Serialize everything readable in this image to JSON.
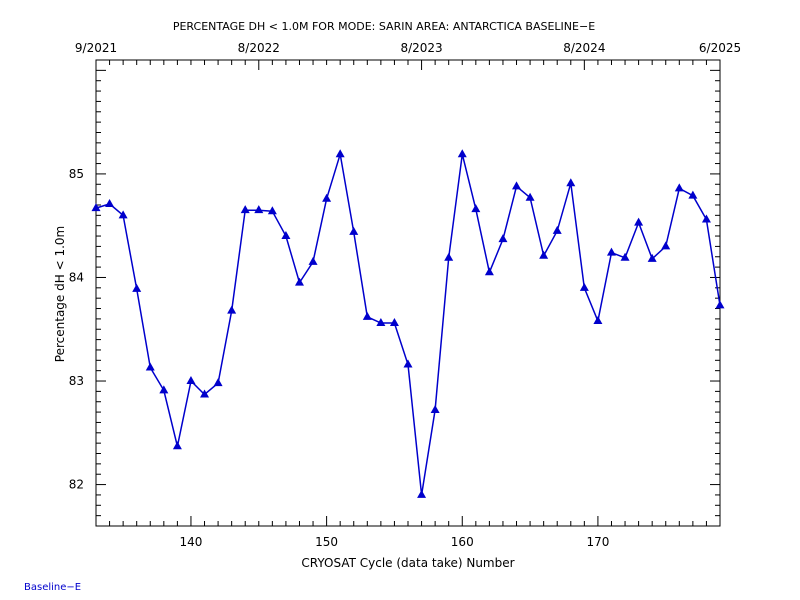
{
  "chart_data": {
    "type": "line",
    "title": "PERCENTAGE DH < 1.0M FOR MODE: SARIN AREA: ANTARCTICA BASELINE−E",
    "xlabel": "CRYOSAT Cycle (data take) Number",
    "ylabel": "Percentage dH < 1.0m",
    "xlim": [
      133,
      179
    ],
    "ylim": [
      81.6,
      86.1
    ],
    "x_ticks": [
      140,
      150,
      160,
      170
    ],
    "y_ticks": [
      82,
      83,
      84,
      85
    ],
    "top_axis_labels": [
      {
        "label": "9/2021",
        "x": 133
      },
      {
        "label": "8/2022",
        "x": 145
      },
      {
        "label": "8/2023",
        "x": 157
      },
      {
        "label": "8/2024",
        "x": 169
      },
      {
        "label": "6/2025",
        "x": 179
      }
    ],
    "series": [
      {
        "color": "#0000cc",
        "marker": "triangle",
        "x": [
          133,
          134,
          135,
          136,
          137,
          138,
          139,
          140,
          141,
          142,
          143,
          144,
          145,
          146,
          147,
          148,
          149,
          150,
          151,
          152,
          153,
          154,
          155,
          156,
          157,
          158,
          159,
          160,
          161,
          162,
          163,
          164,
          165,
          166,
          167,
          168,
          169,
          170,
          171,
          172,
          173,
          174,
          175,
          176,
          177,
          178,
          179
        ],
        "values": [
          84.67,
          84.71,
          84.6,
          83.89,
          83.13,
          82.91,
          82.37,
          83.0,
          82.87,
          82.98,
          83.68,
          84.65,
          84.65,
          84.64,
          84.4,
          83.95,
          84.15,
          84.76,
          85.19,
          84.44,
          83.62,
          83.56,
          83.56,
          83.16,
          81.9,
          82.72,
          84.19,
          85.19,
          84.66,
          84.05,
          84.37,
          84.88,
          84.77,
          84.21,
          84.45,
          84.91,
          83.9,
          83.58,
          84.24,
          84.19,
          84.53,
          84.18,
          84.3,
          84.86,
          84.79,
          84.56,
          83.73
        ]
      }
    ]
  },
  "footer_label": "Baseline−E"
}
